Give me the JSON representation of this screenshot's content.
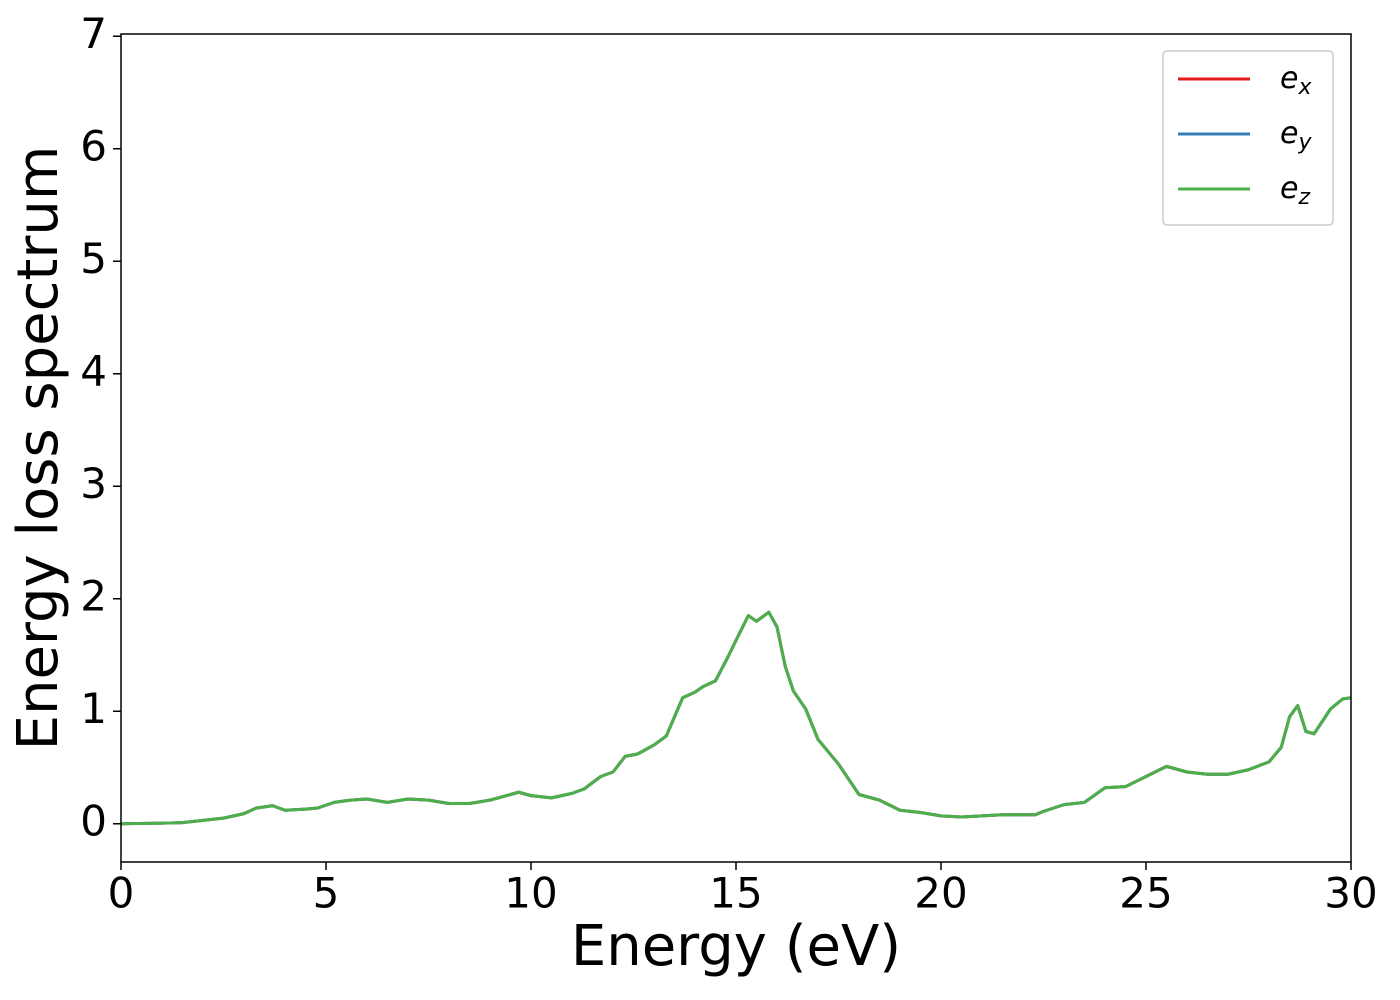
{
  "chart_data": {
    "type": "line",
    "x_label": "Energy (eV)",
    "y_label": "Energy loss spectrum",
    "x": [
      0,
      1,
      1.5,
      2,
      2.5,
      3,
      3.3,
      3.7,
      4,
      4.5,
      4.8,
      5.2,
      5.6,
      6,
      6.5,
      7,
      7.5,
      8,
      8.5,
      9,
      9.5,
      9.7,
      10,
      10.5,
      11,
      11.3,
      11.7,
      12,
      12.3,
      12.6,
      13,
      13.3,
      13.5,
      13.7,
      14,
      14.2,
      14.5,
      14.8,
      15,
      15.3,
      15.5,
      15.8,
      16,
      16.2,
      16.4,
      16.7,
      17,
      17.5,
      18,
      18.5,
      19,
      19.5,
      20,
      20.5,
      21,
      21.5,
      22,
      22.3,
      22.5,
      23,
      23.5,
      24,
      24.5,
      25,
      25.5,
      26,
      26.5,
      27,
      27.5,
      28,
      28.3,
      28.5,
      28.7,
      28.9,
      29.1,
      29.5,
      29.8,
      30
    ],
    "series": [
      {
        "name": "e_x",
        "color": "#e41a1c",
        "values": [
          0,
          0.005,
          0.01,
          0.03,
          0.05,
          0.09,
          0.14,
          0.16,
          0.12,
          0.13,
          0.14,
          0.19,
          0.21,
          0.22,
          0.19,
          0.22,
          0.21,
          0.18,
          0.18,
          0.21,
          0.26,
          0.28,
          0.25,
          0.23,
          0.27,
          0.31,
          0.42,
          0.46,
          0.6,
          0.62,
          0.7,
          0.78,
          0.95,
          1.12,
          1.17,
          1.22,
          1.27,
          1.48,
          1.63,
          1.85,
          1.8,
          1.88,
          1.75,
          1.4,
          1.18,
          1.02,
          0.75,
          0.53,
          0.26,
          0.21,
          0.12,
          0.1,
          0.07,
          0.06,
          0.07,
          0.08,
          0.08,
          0.08,
          0.11,
          0.17,
          0.19,
          0.32,
          0.33,
          0.42,
          0.51,
          0.46,
          0.44,
          0.44,
          0.48,
          0.55,
          0.68,
          0.95,
          1.05,
          0.82,
          0.8,
          1.02,
          1.11,
          1.12
        ]
      },
      {
        "name": "e_y",
        "color": "#377eb8",
        "values": [
          0,
          0.005,
          0.01,
          0.03,
          0.05,
          0.09,
          0.14,
          0.16,
          0.12,
          0.13,
          0.14,
          0.19,
          0.21,
          0.22,
          0.19,
          0.22,
          0.21,
          0.18,
          0.18,
          0.21,
          0.26,
          0.28,
          0.25,
          0.23,
          0.27,
          0.31,
          0.42,
          0.46,
          0.6,
          0.62,
          0.7,
          0.78,
          0.95,
          1.12,
          1.17,
          1.22,
          1.27,
          1.48,
          1.63,
          1.85,
          1.8,
          1.88,
          1.75,
          1.4,
          1.18,
          1.02,
          0.75,
          0.53,
          0.26,
          0.21,
          0.12,
          0.1,
          0.07,
          0.06,
          0.07,
          0.08,
          0.08,
          0.08,
          0.11,
          0.17,
          0.19,
          0.32,
          0.33,
          0.42,
          0.51,
          0.46,
          0.44,
          0.44,
          0.48,
          0.55,
          0.68,
          0.95,
          1.05,
          0.82,
          0.8,
          1.02,
          1.11,
          1.12
        ]
      },
      {
        "name": "e_z",
        "color": "#4daf4a",
        "values": [
          0,
          0.005,
          0.01,
          0.03,
          0.05,
          0.09,
          0.14,
          0.16,
          0.12,
          0.13,
          0.14,
          0.19,
          0.21,
          0.22,
          0.19,
          0.22,
          0.21,
          0.18,
          0.18,
          0.21,
          0.26,
          0.28,
          0.25,
          0.23,
          0.27,
          0.31,
          0.42,
          0.46,
          0.6,
          0.62,
          0.7,
          0.78,
          0.95,
          1.12,
          1.17,
          1.22,
          1.27,
          1.48,
          1.63,
          1.85,
          1.8,
          1.88,
          1.75,
          1.4,
          1.18,
          1.02,
          0.75,
          0.53,
          0.26,
          0.21,
          0.12,
          0.1,
          0.07,
          0.06,
          0.07,
          0.08,
          0.08,
          0.08,
          0.11,
          0.17,
          0.19,
          0.32,
          0.33,
          0.42,
          0.51,
          0.46,
          0.44,
          0.44,
          0.48,
          0.55,
          0.68,
          0.95,
          1.05,
          0.82,
          0.8,
          1.02,
          1.11,
          1.12
        ]
      }
    ],
    "xlim": [
      0,
      30
    ],
    "xticks": [
      0,
      5,
      10,
      15,
      20,
      25,
      30
    ],
    "ylim": [
      -0.34,
      7.02
    ],
    "yticks": [
      0,
      1,
      2,
      3,
      4,
      5,
      6,
      7
    ],
    "grid": false,
    "legend": "upper right"
  }
}
